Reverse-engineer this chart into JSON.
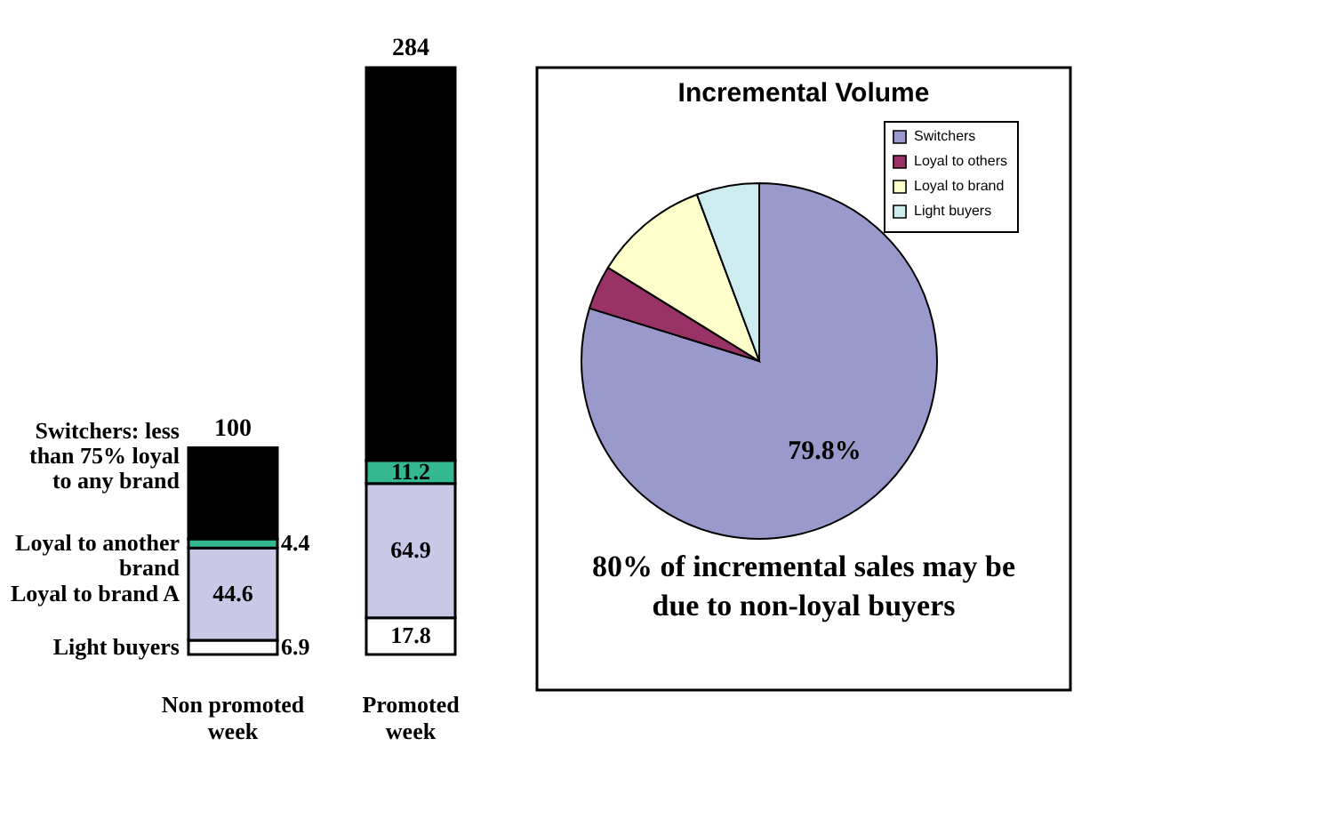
{
  "chart_data": [
    {
      "type": "bar",
      "stacked": true,
      "categories": [
        "Non promoted week",
        "Promoted week"
      ],
      "series": [
        {
          "name": "Light buyers",
          "color": "#ffffff",
          "values": [
            6.9,
            17.8
          ],
          "value_labels": [
            "6.9",
            "17.8"
          ]
        },
        {
          "name": "Loyal to brand A",
          "color": "#c9c8e6",
          "values": [
            44.6,
            64.9
          ],
          "value_labels": [
            "44.6",
            "64.9"
          ]
        },
        {
          "name": "Loyal to another brand",
          "color": "#33b88f",
          "values": [
            4.4,
            11.2
          ],
          "value_labels": [
            "4.4",
            "11.2"
          ]
        },
        {
          "name": "Switchers: less than 75% loyal to any brand",
          "color": "#000000",
          "values": [
            44.1,
            190.1
          ],
          "value_labels": [
            null,
            null
          ]
        }
      ],
      "totals": [
        "100",
        "284"
      ]
    },
    {
      "type": "pie",
      "title": "Incremental Volume",
      "legend": "top right",
      "categories": [
        "Switchers",
        "Loyal to others",
        "Loyal to brand",
        "Light buyers"
      ],
      "values": [
        79.8,
        4,
        10.5,
        5.7
      ],
      "colors": [
        "#9999cc",
        "#993366",
        "#ffffcc",
        "#ccecf0"
      ],
      "value_labels": [
        "79.8%",
        null,
        null,
        null
      ],
      "annotations": [
        "80% of incremental sales may be due to non-loyal buyers"
      ]
    }
  ]
}
